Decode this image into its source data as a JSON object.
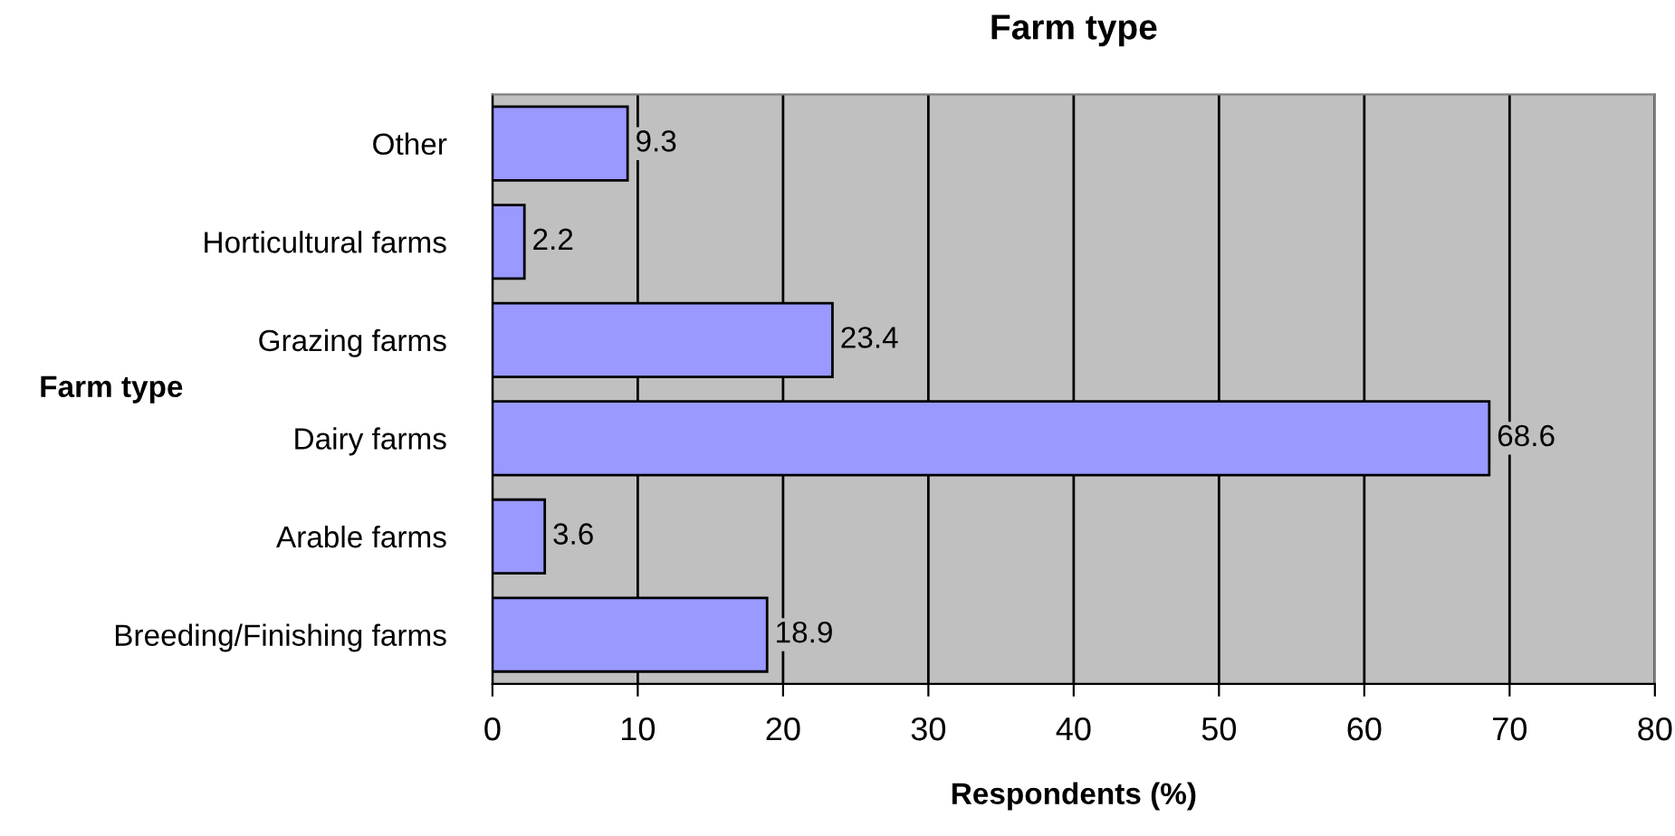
{
  "chart_data": {
    "type": "bar",
    "orientation": "horizontal",
    "title": "Farm type",
    "xlabel": "Respondents (%)",
    "ylabel": "Farm type",
    "categories": [
      "Other",
      "Horticultural farms",
      "Grazing farms",
      "Dairy farms",
      "Arable farms",
      "Breeding/Finishing farms"
    ],
    "values": [
      9.3,
      2.2,
      23.4,
      68.6,
      3.6,
      18.9
    ],
    "color": "#9999ff",
    "data_labels": true,
    "xlim": [
      0,
      80
    ],
    "xticks": [
      0,
      10,
      20,
      30,
      40,
      50,
      60,
      70,
      80
    ],
    "grid": "x",
    "legend": false
  }
}
